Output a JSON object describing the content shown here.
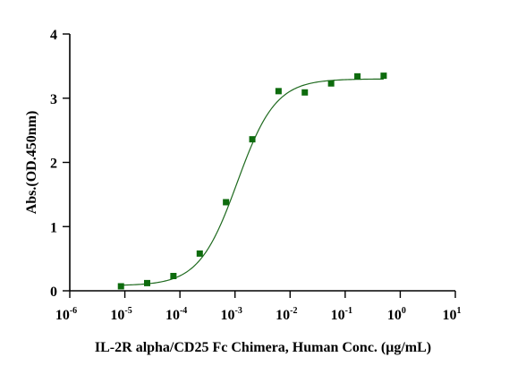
{
  "chart_data": {
    "type": "scatter",
    "xlabel": "IL-2R alpha/CD25 Fc Chimera, Human Conc. (μg/mL)",
    "ylabel": "Abs.(OD.450nm)",
    "x_scale": "log",
    "xlim": [
      1e-06,
      10
    ],
    "ylim": [
      0,
      4
    ],
    "x_ticks": [
      {
        "base": "10",
        "exp": "-6"
      },
      {
        "base": "10",
        "exp": "-5"
      },
      {
        "base": "10",
        "exp": "-4"
      },
      {
        "base": "10",
        "exp": "-3"
      },
      {
        "base": "10",
        "exp": "-2"
      },
      {
        "base": "10",
        "exp": "-1"
      },
      {
        "base": "10",
        "exp": "0"
      },
      {
        "base": "10",
        "exp": "1"
      }
    ],
    "x_tick_values": [
      1e-06,
      1e-05,
      0.0001,
      0.001,
      0.01,
      0.1,
      1,
      10
    ],
    "y_ticks": [
      "0",
      "1",
      "2",
      "3",
      "4"
    ],
    "y_tick_values": [
      0,
      1,
      2,
      3,
      4
    ],
    "series": [
      {
        "marker": "square",
        "color": "#0d6b0d",
        "x": [
          8.5e-06,
          2.54e-05,
          7.62e-05,
          0.000229,
          0.000686,
          0.00206,
          0.00617,
          0.0185,
          0.0556,
          0.167,
          0.5
        ],
        "y": [
          0.07,
          0.12,
          0.23,
          0.58,
          1.38,
          2.36,
          3.11,
          3.09,
          3.23,
          3.34,
          3.35
        ]
      }
    ],
    "fit": {
      "model": "4PL",
      "color": "#1e6a1e",
      "bottom": 0.08,
      "top": 3.3,
      "ec50": 0.0011,
      "hill": 1.25
    },
    "grid": false,
    "legend": "none"
  }
}
